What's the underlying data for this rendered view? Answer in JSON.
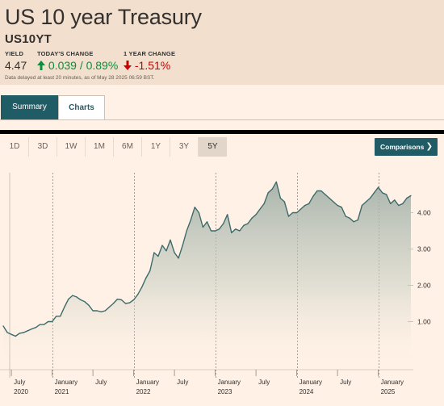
{
  "header": {
    "title": "US 10 year Treasury",
    "symbol": "US10YT",
    "yield_label": "YIELD",
    "yield_value": "4.47",
    "today_label": "TODAY'S CHANGE",
    "today_value": "0.039 / 0.89%",
    "year_label": "1 YEAR CHANGE",
    "year_value": "-1.51%",
    "note": "Data delayed at least 20 minutes, as of May 28 2025 06:59 BST.",
    "colors": {
      "up": "#0a8f3c",
      "down": "#cc0000",
      "brand": "#1f5c66"
    }
  },
  "tabs": [
    {
      "label": "Summary",
      "active": true
    },
    {
      "label": "Charts",
      "active": false
    }
  ],
  "ranges": [
    {
      "label": "1D",
      "active": false
    },
    {
      "label": "3D",
      "active": false
    },
    {
      "label": "1W",
      "active": false
    },
    {
      "label": "1M",
      "active": false
    },
    {
      "label": "6M",
      "active": false
    },
    {
      "label": "1Y",
      "active": false
    },
    {
      "label": "3Y",
      "active": false
    },
    {
      "label": "5Y",
      "active": true
    }
  ],
  "comparisons_label": "Comparisons",
  "icons": {
    "up": "arrow-up-icon",
    "down": "arrow-down-icon",
    "chevron": "chevron-right-icon"
  },
  "chart_data": {
    "type": "area",
    "x_range": [
      "2020-05",
      "2025-05"
    ],
    "ylim": [
      0,
      5
    ],
    "yticks": [
      "1.00",
      "2.00",
      "3.00",
      "4.00"
    ],
    "ytick_values": [
      1,
      2,
      3,
      4
    ],
    "xticks": [
      {
        "label": "July",
        "year": "2020",
        "t": 2020.5
      },
      {
        "label": "January",
        "year": "2021",
        "t": 2021.0
      },
      {
        "label": "July",
        "year": "",
        "t": 2021.5
      },
      {
        "label": "January",
        "year": "2022",
        "t": 2022.0
      },
      {
        "label": "July",
        "year": "",
        "t": 2022.5
      },
      {
        "label": "January",
        "year": "2023",
        "t": 2023.0
      },
      {
        "label": "July",
        "year": "",
        "t": 2023.5
      },
      {
        "label": "January",
        "year": "2024",
        "t": 2024.0
      },
      {
        "label": "July",
        "year": "",
        "t": 2024.5
      },
      {
        "label": "January",
        "year": "2025",
        "t": 2025.0
      }
    ],
    "year_boundaries": [
      2021.0,
      2022.0,
      2023.0,
      2024.0,
      2025.0
    ],
    "series": [
      {
        "x": [
          2020.4,
          2020.45,
          2020.5,
          2020.55,
          2020.6,
          2020.65,
          2020.7,
          2020.75,
          2020.8,
          2020.85,
          2020.9,
          2020.95,
          2021.0,
          2021.05,
          2021.1,
          2021.15,
          2021.2,
          2021.25,
          2021.3,
          2021.35,
          2021.4,
          2021.45,
          2021.5,
          2021.55,
          2021.6,
          2021.65,
          2021.7,
          2021.75,
          2021.8,
          2021.85,
          2021.9,
          2021.95,
          2022.0,
          2022.05,
          2022.1,
          2022.15,
          2022.2,
          2022.25,
          2022.3,
          2022.35,
          2022.4,
          2022.45,
          2022.5,
          2022.55,
          2022.6,
          2022.65,
          2022.7,
          2022.75,
          2022.8,
          2022.85,
          2022.9,
          2022.95,
          2023.0,
          2023.05,
          2023.1,
          2023.15,
          2023.2,
          2023.25,
          2023.3,
          2023.35,
          2023.4,
          2023.45,
          2023.5,
          2023.55,
          2023.6,
          2023.65,
          2023.7,
          2023.75,
          2023.8,
          2023.85,
          2023.9,
          2023.95,
          2024.0,
          2024.05,
          2024.1,
          2024.15,
          2024.2,
          2024.25,
          2024.3,
          2024.35,
          2024.4,
          2024.45,
          2024.5,
          2024.55,
          2024.6,
          2024.65,
          2024.7,
          2024.75,
          2024.8,
          2024.85,
          2024.9,
          2024.95,
          2025.0,
          2025.05,
          2025.1,
          2025.15,
          2025.2,
          2025.25,
          2025.3,
          2025.35,
          2025.4
        ],
        "values": [
          0.88,
          0.7,
          0.65,
          0.6,
          0.68,
          0.7,
          0.75,
          0.8,
          0.84,
          0.92,
          0.92,
          1.0,
          1.0,
          1.15,
          1.15,
          1.4,
          1.62,
          1.72,
          1.68,
          1.6,
          1.55,
          1.45,
          1.3,
          1.3,
          1.27,
          1.3,
          1.4,
          1.5,
          1.62,
          1.6,
          1.5,
          1.52,
          1.6,
          1.75,
          1.95,
          2.2,
          2.4,
          2.9,
          2.8,
          3.1,
          2.95,
          3.25,
          2.9,
          2.75,
          3.1,
          3.5,
          3.8,
          4.15,
          4.0,
          3.6,
          3.75,
          3.5,
          3.5,
          3.55,
          3.7,
          3.95,
          3.45,
          3.55,
          3.5,
          3.65,
          3.7,
          3.85,
          3.95,
          4.1,
          4.25,
          4.55,
          4.65,
          4.85,
          4.4,
          4.3,
          3.9,
          4.0,
          4.0,
          4.1,
          4.2,
          4.25,
          4.45,
          4.6,
          4.6,
          4.5,
          4.4,
          4.3,
          4.2,
          4.15,
          3.9,
          3.85,
          3.75,
          3.8,
          4.2,
          4.3,
          4.4,
          4.55,
          4.7,
          4.55,
          4.5,
          4.25,
          4.35,
          4.2,
          4.25,
          4.4,
          4.47
        ]
      }
    ]
  }
}
